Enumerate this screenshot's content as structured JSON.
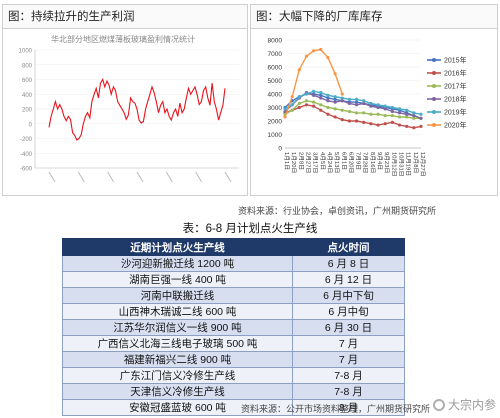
{
  "left_panel": {
    "header": "图：持续拉升的生产利润",
    "chart_title": "华北部分地区燃煤薄板玻璃盈利情况统计",
    "color": "#e8131b",
    "chart_data": {
      "type": "line",
      "title": "华北部分地区燃煤薄板玻璃盈利情况统计",
      "ylim": [
        -600,
        1000
      ],
      "yticks": [
        "1000",
        "800",
        "600",
        "400",
        "200",
        "0",
        "-200",
        "-400",
        "-600"
      ],
      "series": [
        {
          "values": [
            -50,
            100,
            200,
            300,
            200,
            260,
            200,
            100,
            40,
            100,
            60,
            -120,
            -160,
            -220,
            -200,
            -150,
            0,
            100,
            150,
            80,
            300,
            400,
            480,
            350,
            550,
            600,
            500,
            580,
            520,
            400,
            500,
            450,
            300,
            250,
            200,
            150,
            60,
            120,
            350,
            300,
            280,
            200,
            50,
            10,
            30,
            200,
            300,
            400,
            500,
            420,
            300,
            150,
            250,
            300,
            150,
            200,
            100,
            50,
            150,
            200,
            100,
            280,
            150,
            200,
            350,
            480,
            400,
            450,
            500,
            400,
            260,
            300,
            450,
            500,
            350,
            250,
            550,
            300,
            200,
            50,
            150,
            250,
            480
          ]
        }
      ]
    }
  },
  "right_panel": {
    "header": "图：大幅下降的厂库库存",
    "legend": [
      "2015年",
      "2016年",
      "2017年",
      "2018年",
      "2019年",
      "2020年"
    ],
    "colors": [
      "#4472c4",
      "#c0504d",
      "#9bbb59",
      "#8064a2",
      "#4bacc6",
      "#f79646"
    ],
    "chart_data": {
      "type": "line",
      "ylim": [
        0,
        8000
      ],
      "yticks": [
        "8000",
        "7000",
        "6000",
        "5000",
        "4000",
        "3000",
        "2000",
        "1000",
        "0"
      ],
      "categories": [
        "1月1日",
        "1月20日",
        "2月8日",
        "2月27日",
        "3月17日",
        "4月5日",
        "4月24日",
        "5月13日",
        "6月1日",
        "6月20日",
        "7月9日",
        "7月28日",
        "8月16日",
        "9月4日",
        "9月23日",
        "10月12日",
        "10月31日",
        "11月19日",
        "12月8日",
        "12月27日"
      ],
      "series": [
        {
          "name": "2015年",
          "values": [
            3000,
            3500,
            3800,
            4000,
            4000,
            3900,
            3700,
            3600,
            3500,
            3400,
            3400,
            3300,
            3200,
            3100,
            3000,
            2900,
            2800,
            2600,
            2400,
            2200
          ]
        },
        {
          "name": "2016年",
          "values": [
            2600,
            2800,
            3000,
            3200,
            3100,
            2800,
            2500,
            2300,
            2100,
            2000,
            2000,
            1900,
            1800,
            1700,
            1800,
            1900,
            1700,
            1600,
            1500,
            1600
          ]
        },
        {
          "name": "2017年",
          "values": [
            2500,
            2800,
            3300,
            3500,
            3400,
            3200,
            3000,
            2900,
            2800,
            2700,
            2600,
            2600,
            2500,
            2500,
            2400,
            2400,
            2300,
            2300,
            2200,
            2200
          ]
        },
        {
          "name": "2018年",
          "values": [
            2700,
            3200,
            3700,
            4100,
            3900,
            3700,
            3500,
            3400,
            3500,
            3300,
            3200,
            3300,
            3100,
            3000,
            2900,
            2700,
            2600,
            2500,
            2400,
            2200
          ]
        },
        {
          "name": "2019年",
          "values": [
            2900,
            3200,
            3800,
            4000,
            4200,
            4100,
            3900,
            3800,
            3700,
            3600,
            3600,
            3500,
            3300,
            3200,
            3100,
            3000,
            2900,
            2800,
            2600,
            2500
          ]
        },
        {
          "name": "2020年",
          "values": [
            2300,
            3800,
            5800,
            6800,
            7200,
            7300,
            6700,
            5500,
            4000,
            null,
            null,
            null,
            null,
            null,
            null,
            null,
            null,
            null,
            null,
            null
          ]
        }
      ]
    }
  },
  "source1": "资料来源：行业协会，卓创资讯，广州期货研究所",
  "table": {
    "title": "表：6-8 月计划点火生产线",
    "headers": [
      "近期计划点火生产线",
      "点火时间"
    ],
    "rows": [
      [
        "沙河迎新搬迁线 1200 吨",
        "6 月 8 日"
      ],
      [
        "湖南巨强一线 400 吨",
        "6 月 12 日"
      ],
      [
        "河南中联搬迁线",
        "6 月中下旬"
      ],
      [
        "山西神木瑞诚二线 600 吨",
        "6 月中旬"
      ],
      [
        "江苏华尔润信义一线 900 吨",
        "6 月 30 日"
      ],
      [
        "广西信义北海三线电子玻璃 500 吨",
        "7 月"
      ],
      [
        "福建新福兴二线 900 吨",
        "7 月"
      ],
      [
        "广东江门信义冷修生产线",
        "7-8 月"
      ],
      [
        "天津信义冷修生产线",
        "7-8 月"
      ],
      [
        "安徽冠盛蓝玻 600 吨",
        "8 月"
      ]
    ]
  },
  "source2": "资料来源：公开市场资料整理，广州期货研究所",
  "watermark": "大宗内参"
}
